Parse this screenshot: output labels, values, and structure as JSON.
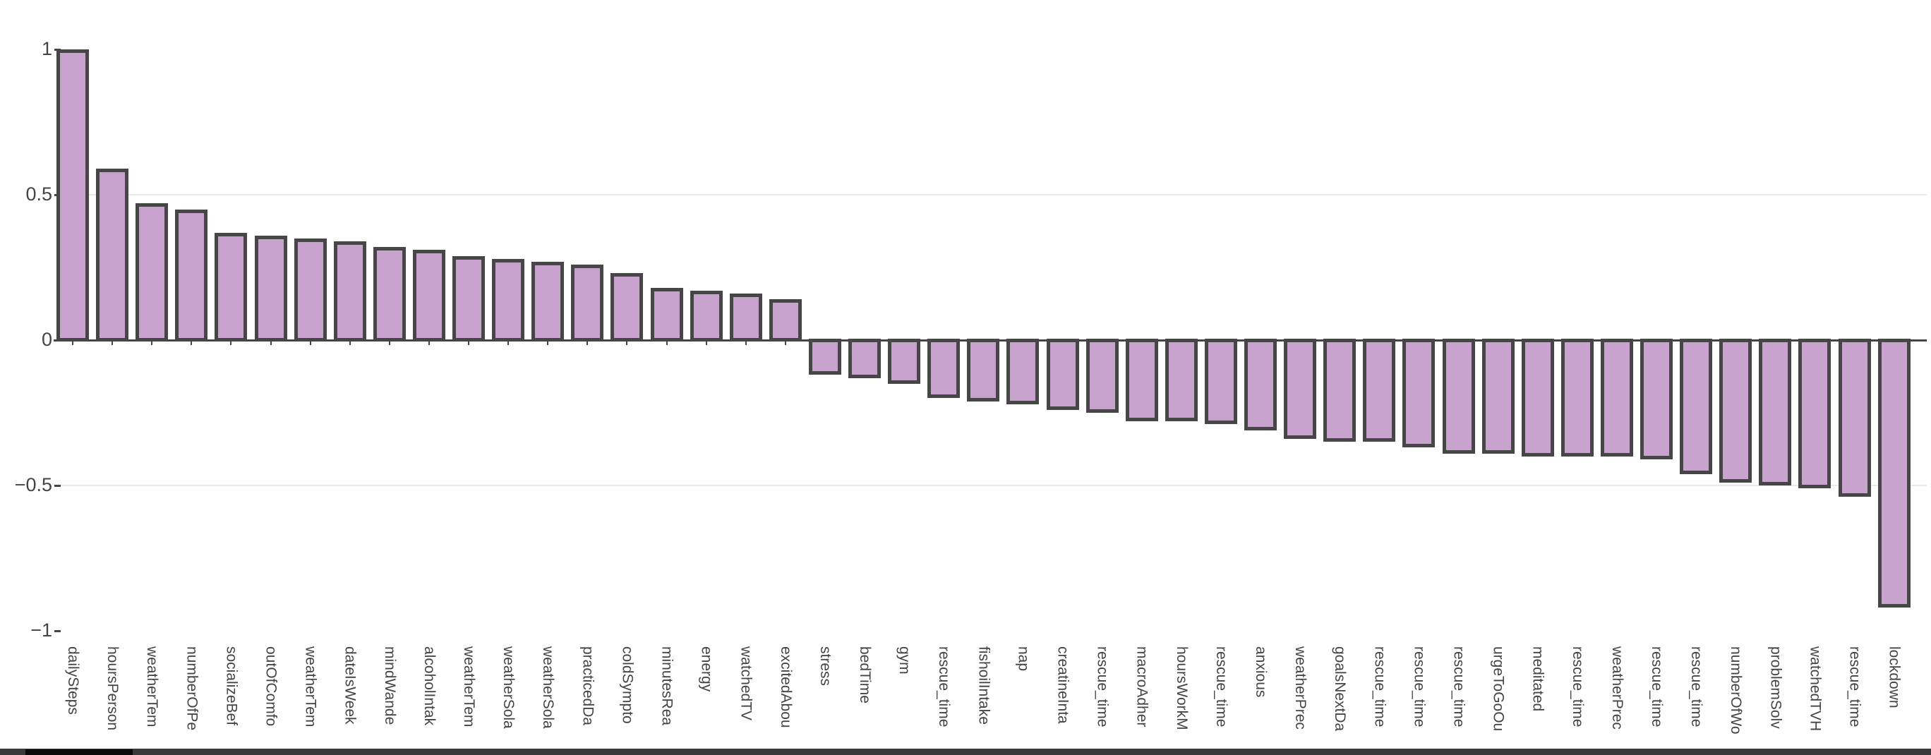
{
  "chart_data": {
    "type": "bar",
    "title": "",
    "xlabel": "",
    "ylabel": "",
    "ylim": [
      -1,
      1
    ],
    "yticks": [
      1,
      0.5,
      0,
      -0.5,
      -1
    ],
    "ytick_labels": [
      "1",
      "0.5",
      "0",
      "−0.5",
      "−1"
    ],
    "grid": "horizontal gridlines at 0.5 and -0.5, dark zeroline at 0",
    "legend_position": "none",
    "categories": [
      "dailySteps",
      "hoursPerson",
      "weatherTem",
      "numberOfPe",
      "socializeBef",
      "outOfComfo",
      "weatherTem",
      "dateIsWeek",
      "mindWande",
      "alcoholIntak",
      "weatherTem",
      "weatherSola",
      "weatherSola",
      "practicedDa",
      "coldSympto",
      "minutesRea",
      "energy",
      "watchedTV",
      "excitedAbou",
      "stress",
      "bedTime",
      "gym",
      "rescue_time",
      "fishoilIntake",
      "nap",
      "creatineInta",
      "rescue_time",
      "macroAdher",
      "hoursWorkM",
      "rescue_time",
      "anxious",
      "weatherPrec",
      "goalsNextDa",
      "rescue_time",
      "rescue_time",
      "rescue_time",
      "urgeToGoOu",
      "meditated",
      "rescue_time",
      "weatherPrec",
      "rescue_time",
      "rescue_time",
      "numberOfWo",
      "problemSolv",
      "watchedTVH",
      "rescue_time",
      "lockdown"
    ],
    "values": [
      1.0,
      0.59,
      0.47,
      0.45,
      0.37,
      0.36,
      0.35,
      0.34,
      0.32,
      0.31,
      0.29,
      0.28,
      0.27,
      0.26,
      0.23,
      0.18,
      0.17,
      0.16,
      0.14,
      -0.12,
      -0.13,
      -0.15,
      -0.2,
      -0.21,
      -0.22,
      -0.24,
      -0.25,
      -0.28,
      -0.28,
      -0.29,
      -0.31,
      -0.34,
      -0.35,
      -0.35,
      -0.37,
      -0.39,
      -0.39,
      -0.4,
      -0.4,
      -0.4,
      -0.41,
      -0.46,
      -0.49,
      -0.5,
      -0.51,
      -0.54,
      -0.92
    ]
  },
  "colors": {
    "background": "#ffffff",
    "bar_fill": "#c8a3cd",
    "bar_outline": "#464646",
    "gridline": "#e9e9e9",
    "zeroline": "#444444",
    "tick_text": "#444444",
    "bottom_strip": "#3a3a3a",
    "bottom_strip_dark": "#0b0b0b"
  }
}
